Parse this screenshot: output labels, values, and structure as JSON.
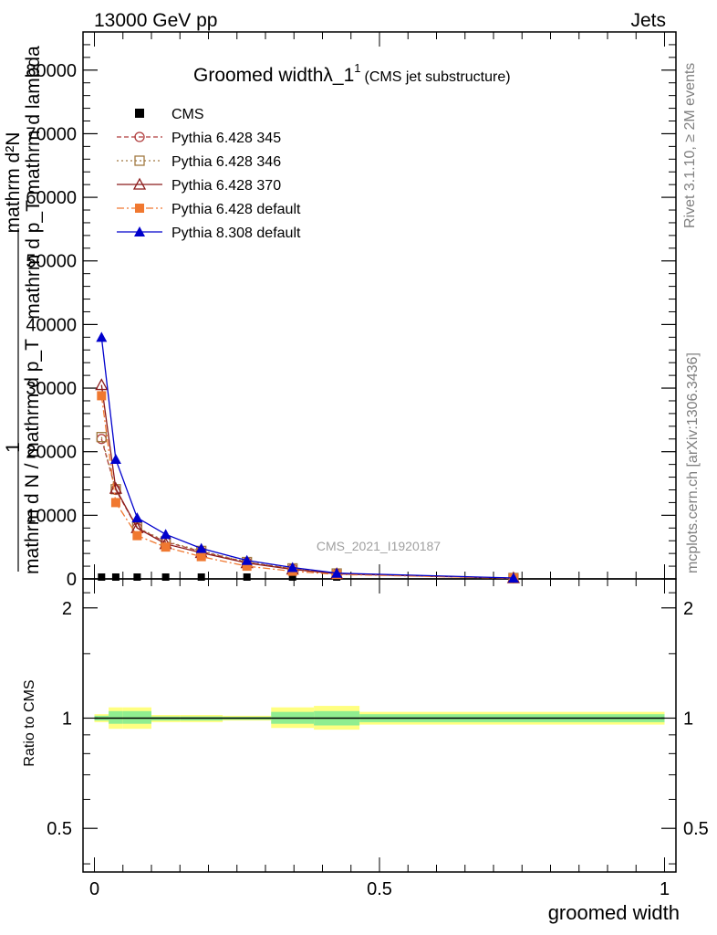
{
  "header": {
    "energy_label": "13000 GeV pp",
    "category_label": "Jets",
    "side_top": "Rivet 3.1.10, ≥ 2M events",
    "side_bottom": "mcplots.cern.ch [arXiv:1306.3436]",
    "watermark": "CMS_2021_I1920187"
  },
  "chart_data": [
    {
      "type": "line",
      "title": "Groomed widthλ_1",
      "title_sup": "1",
      "subtitle": "(CMS jet substructure)",
      "xlabel": "groomed width",
      "ylabel_numerator": "mathrm d²N",
      "ylabel_numerator_lines": [
        "mathrm d²N",
        "mathrm d p_T mathrm d lambda"
      ],
      "ylabel_denominator": "mathrm d N / mathrm d p_T",
      "ylabel_fraction_one": "1",
      "xlim": [
        -0.02,
        1.02
      ],
      "ylim": [
        0,
        86000
      ],
      "xticks": [
        0,
        0.5,
        1
      ],
      "xtick_labels": [
        "0",
        "0.5",
        "1"
      ],
      "yticks": [
        0,
        10000,
        20000,
        30000,
        40000,
        50000,
        60000,
        70000,
        80000
      ],
      "ytick_labels": [
        "0",
        "10000",
        "20000",
        "30000",
        "40000",
        "50000",
        "60000",
        "70000",
        "80000"
      ],
      "legend_position": "top-left",
      "series": [
        {
          "name": "CMS",
          "color": "#000000",
          "marker": "square-filled",
          "dash": "",
          "x": [
            0.0125,
            0.0375,
            0.075,
            0.125,
            0.1875,
            0.2675,
            0.3475,
            0.425,
            0.735
          ],
          "y": [
            0,
            0,
            0,
            0,
            0,
            0,
            0,
            0,
            0
          ]
        },
        {
          "name": "Pythia 6.428 345",
          "color": "#b03c3c",
          "marker": "circle-open",
          "dash": "5,3",
          "x": [
            0.0125,
            0.0375,
            0.075,
            0.125,
            0.1875,
            0.2675,
            0.3475,
            0.425,
            0.735
          ],
          "y": [
            22000,
            14000,
            8000,
            5800,
            4300,
            2600,
            1600,
            800,
            100
          ]
        },
        {
          "name": "Pythia 6.428 346",
          "color": "#a07840",
          "marker": "square-open",
          "dash": "2,3",
          "x": [
            0.0125,
            0.0375,
            0.075,
            0.125,
            0.1875,
            0.2675,
            0.3475,
            0.425,
            0.735
          ],
          "y": [
            22300,
            14100,
            8100,
            5900,
            4400,
            2650,
            1650,
            850,
            100
          ]
        },
        {
          "name": "Pythia 6.428 370",
          "color": "#8b1a1a",
          "marker": "triangle-open",
          "dash": "",
          "x": [
            0.0125,
            0.0375,
            0.075,
            0.125,
            0.1875,
            0.2675,
            0.3475,
            0.425,
            0.735
          ],
          "y": [
            30500,
            14200,
            8000,
            5500,
            4100,
            2500,
            1500,
            800,
            100
          ]
        },
        {
          "name": "Pythia 6.428 default",
          "color": "#f07830",
          "marker": "square-filled",
          "dash": "8,3,2,3",
          "x": [
            0.0125,
            0.0375,
            0.075,
            0.125,
            0.1875,
            0.2675,
            0.3475,
            0.425,
            0.735
          ],
          "y": [
            28800,
            12000,
            6800,
            5000,
            3500,
            2000,
            1200,
            700,
            100
          ]
        },
        {
          "name": "Pythia 8.308 default",
          "color": "#0000cc",
          "marker": "triangle-filled",
          "dash": "",
          "x": [
            0.0125,
            0.0375,
            0.075,
            0.125,
            0.1875,
            0.2675,
            0.3475,
            0.425,
            0.735
          ],
          "y": [
            38000,
            18800,
            9600,
            7000,
            4800,
            2900,
            1800,
            900,
            150
          ]
        }
      ]
    },
    {
      "type": "area",
      "ylabel": "Ratio to CMS",
      "xlabel": "groomed width",
      "xlim": [
        -0.02,
        1.02
      ],
      "ylim": [
        0.38,
        2.4
      ],
      "log_y": true,
      "yticks": [
        0.5,
        1,
        2
      ],
      "ytick_labels": [
        "0.5",
        "1",
        "2"
      ],
      "reference_line": 1,
      "bands": {
        "edges": [
          0,
          0.025,
          0.05,
          0.1,
          0.15,
          0.225,
          0.31,
          0.385,
          0.465,
          1.0
        ],
        "outer_yellow": [
          [
            0.975,
            1.025
          ],
          [
            0.935,
            1.07
          ],
          [
            0.935,
            1.07
          ],
          [
            0.975,
            1.02
          ],
          [
            0.975,
            1.02
          ],
          [
            0.985,
            1.015
          ],
          [
            0.94,
            1.07
          ],
          [
            0.93,
            1.08
          ],
          [
            0.96,
            1.04
          ]
        ],
        "inner_green": [
          [
            0.985,
            1.015
          ],
          [
            0.965,
            1.045
          ],
          [
            0.965,
            1.045
          ],
          [
            0.985,
            1.01
          ],
          [
            0.985,
            1.01
          ],
          [
            0.99,
            1.008
          ],
          [
            0.965,
            1.04
          ],
          [
            0.955,
            1.045
          ],
          [
            0.975,
            1.025
          ]
        ]
      },
      "colors": {
        "yellow": "#ffff80",
        "green": "#90ee90"
      }
    }
  ]
}
